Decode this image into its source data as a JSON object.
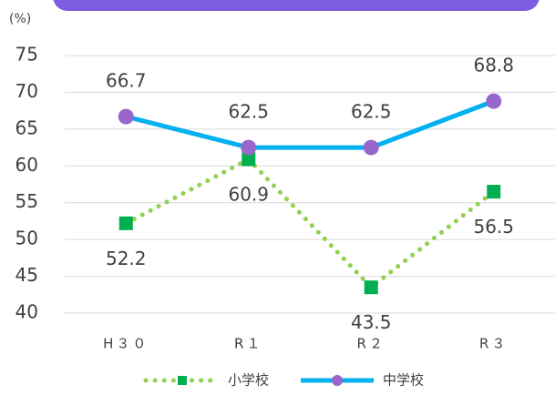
{
  "chart_data": {
    "type": "line",
    "y_label": "(%)",
    "categories": [
      "H３０",
      "R１",
      "R２",
      "R３"
    ],
    "series": [
      {
        "name": "小学校",
        "color": "#92d050",
        "marker_color": "#00b050",
        "marker": "square",
        "dash": "dotted",
        "values": [
          52.2,
          60.9,
          43.5,
          56.5
        ]
      },
      {
        "name": "中学校",
        "color": "#00b0f0",
        "marker_color": "#9966cc",
        "marker": "circle",
        "dash": "solid",
        "values": [
          66.7,
          62.5,
          62.5,
          68.8
        ]
      }
    ],
    "ylim": [
      40,
      75
    ],
    "yticks": [
      40,
      45,
      50,
      55,
      60,
      65,
      70,
      75
    ],
    "grid": true
  }
}
